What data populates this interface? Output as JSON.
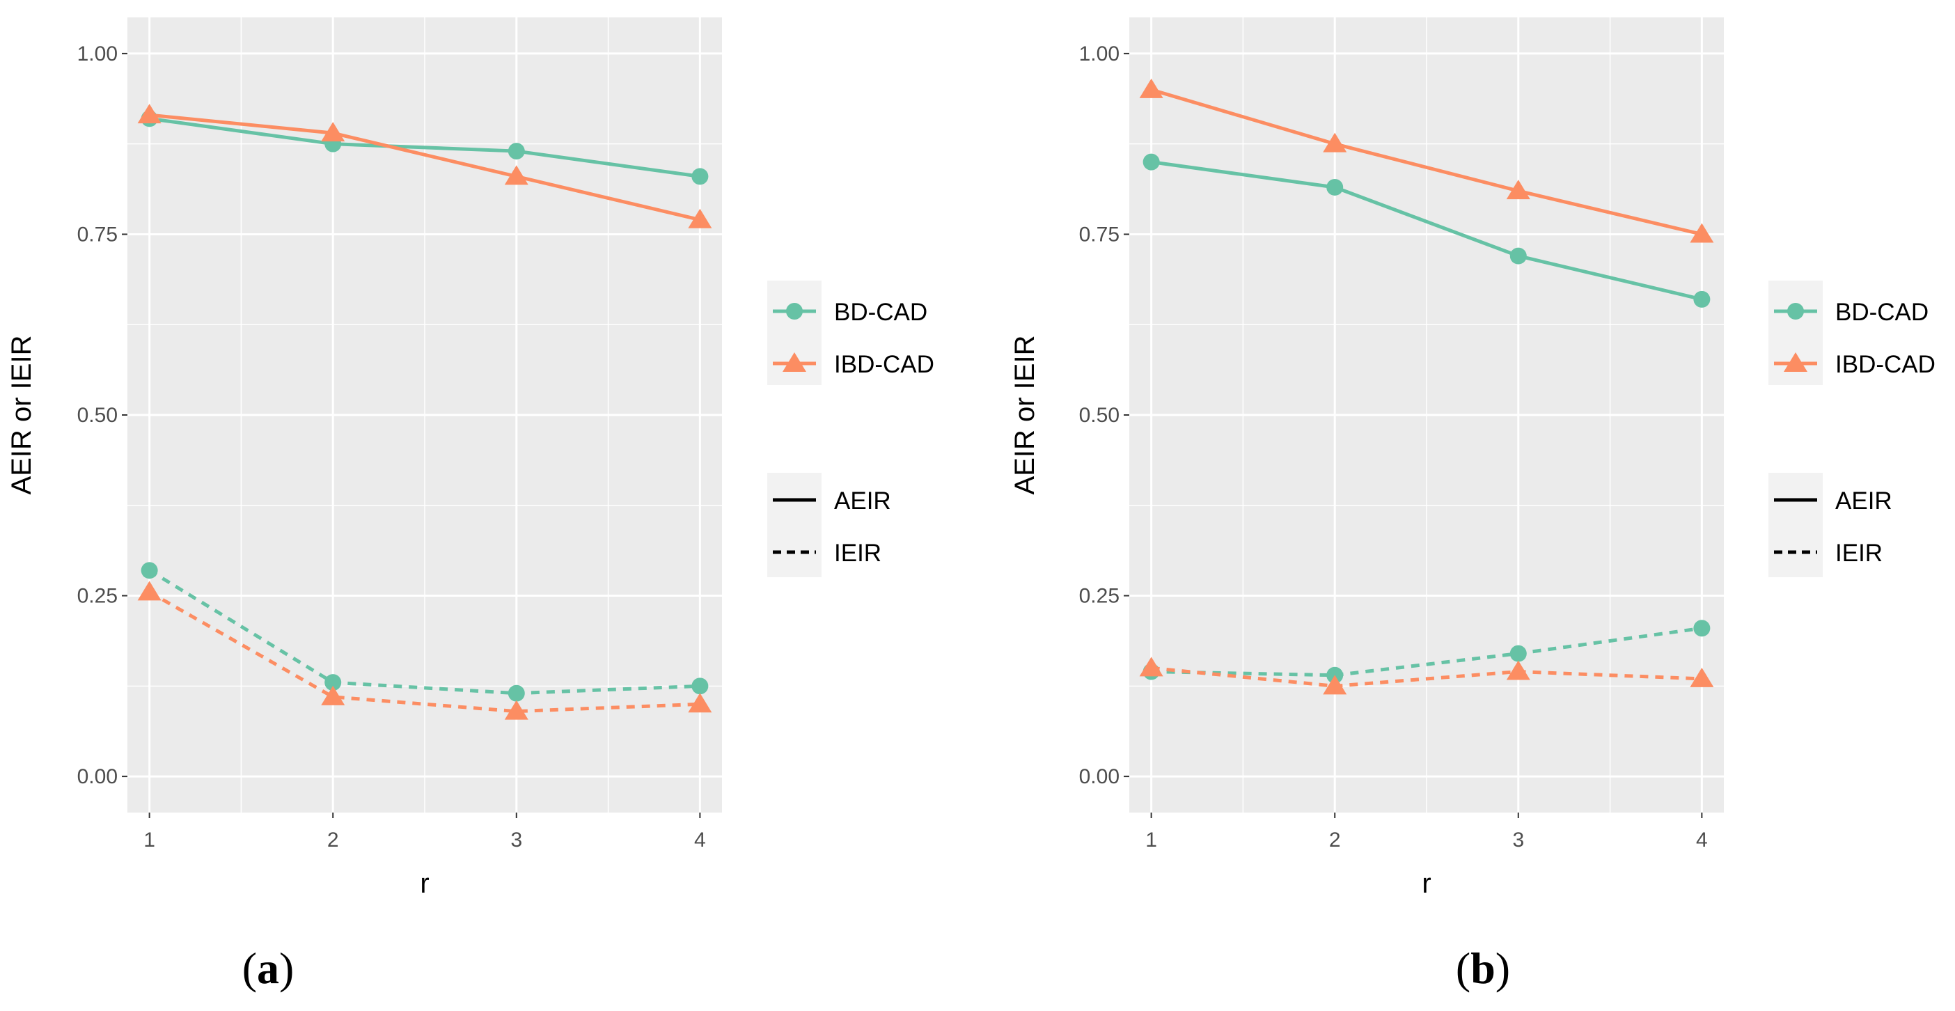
{
  "chart_data": [
    {
      "type": "line",
      "panel_label": "a",
      "xlabel": "r",
      "ylabel": "AEIR or IEIR",
      "x": [
        1,
        2,
        3,
        4
      ],
      "x_tick_labels": [
        "1",
        "2",
        "3",
        "4"
      ],
      "y_tick_labels": [
        "0.00",
        "0.25",
        "0.50",
        "0.75",
        "1.00"
      ],
      "y_ticks": [
        0,
        0.25,
        0.5,
        0.75,
        1.0
      ],
      "xlim": [
        0.88,
        4.12
      ],
      "ylim": [
        -0.05,
        1.05
      ],
      "grid": true,
      "series": [
        {
          "name": "BD-CAD",
          "measure": "AEIR",
          "color": "#66c2a5",
          "marker": "circle",
          "linetype": "solid",
          "values": [
            0.91,
            0.875,
            0.865,
            0.83
          ]
        },
        {
          "name": "IBD-CAD",
          "measure": "AEIR",
          "color": "#fc8d62",
          "marker": "triangle",
          "linetype": "solid",
          "values": [
            0.915,
            0.89,
            0.83,
            0.77
          ]
        },
        {
          "name": "BD-CAD",
          "measure": "IEIR",
          "color": "#66c2a5",
          "marker": "circle",
          "linetype": "dashed",
          "values": [
            0.285,
            0.13,
            0.115,
            0.125
          ]
        },
        {
          "name": "IBD-CAD",
          "measure": "IEIR",
          "color": "#fc8d62",
          "marker": "triangle",
          "linetype": "dashed",
          "values": [
            0.255,
            0.11,
            0.09,
            0.1
          ]
        }
      ],
      "legend_colour": [
        "BD-CAD",
        "IBD-CAD"
      ],
      "legend_linetype": [
        "AEIR",
        "IEIR"
      ]
    },
    {
      "type": "line",
      "panel_label": "b",
      "xlabel": "r",
      "ylabel": "AEIR or IEIR",
      "x": [
        1,
        2,
        3,
        4
      ],
      "x_tick_labels": [
        "1",
        "2",
        "3",
        "4"
      ],
      "y_tick_labels": [
        "0.00",
        "0.25",
        "0.50",
        "0.75",
        "1.00"
      ],
      "y_ticks": [
        0,
        0.25,
        0.5,
        0.75,
        1.0
      ],
      "xlim": [
        0.88,
        4.12
      ],
      "ylim": [
        -0.05,
        1.05
      ],
      "grid": true,
      "series": [
        {
          "name": "BD-CAD",
          "measure": "AEIR",
          "color": "#66c2a5",
          "marker": "circle",
          "linetype": "solid",
          "values": [
            0.85,
            0.815,
            0.72,
            0.66
          ]
        },
        {
          "name": "IBD-CAD",
          "measure": "AEIR",
          "color": "#fc8d62",
          "marker": "triangle",
          "linetype": "solid",
          "values": [
            0.95,
            0.875,
            0.81,
            0.75
          ]
        },
        {
          "name": "BD-CAD",
          "measure": "IEIR",
          "color": "#66c2a5",
          "marker": "circle",
          "linetype": "dashed",
          "values": [
            0.145,
            0.14,
            0.17,
            0.205
          ]
        },
        {
          "name": "IBD-CAD",
          "measure": "IEIR",
          "color": "#fc8d62",
          "marker": "triangle",
          "linetype": "dashed",
          "values": [
            0.15,
            0.125,
            0.145,
            0.135
          ]
        }
      ],
      "legend_colour": [
        "BD-CAD",
        "IBD-CAD"
      ],
      "legend_linetype": [
        "AEIR",
        "IEIR"
      ]
    }
  ]
}
